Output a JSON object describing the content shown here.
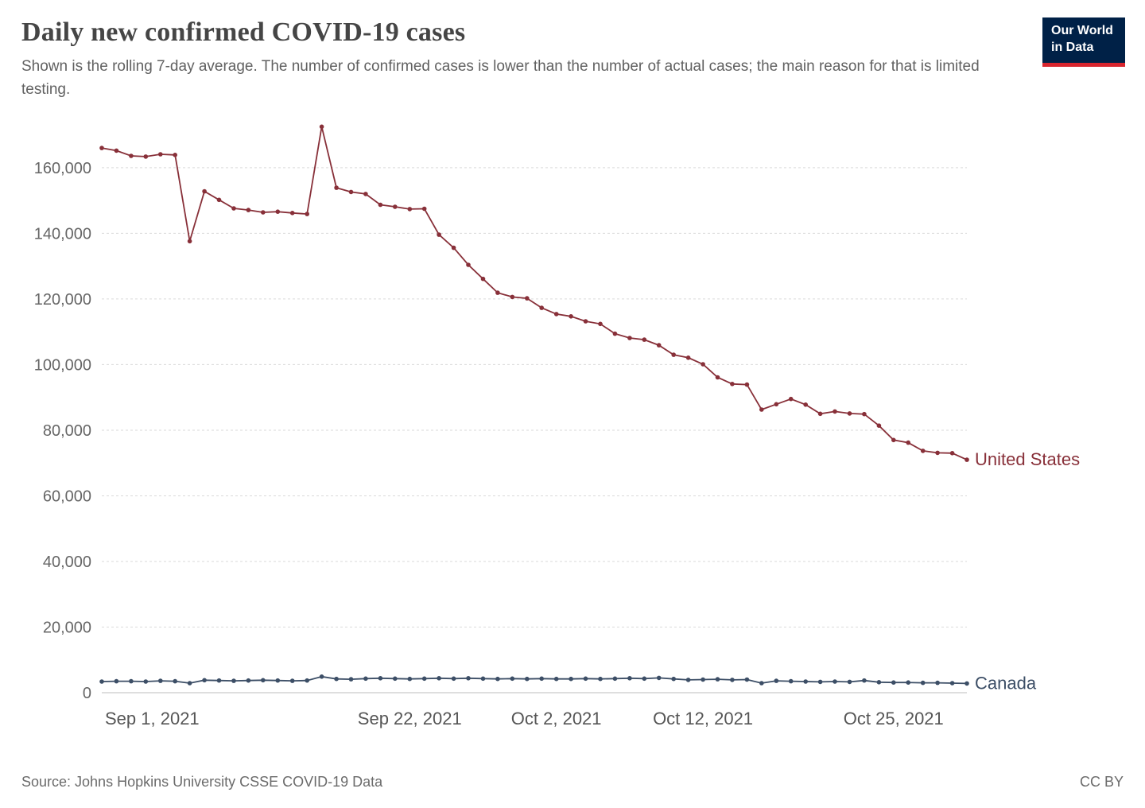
{
  "header": {
    "title": "Daily new confirmed COVID-19 cases",
    "subtitle": "Shown is the rolling 7-day average. The number of confirmed cases is lower than the number of actual cases; the main reason for that is limited testing.",
    "logo": {
      "line1": "Our World",
      "line2": "in Data",
      "bg": "#002147",
      "accent": "#d8252e"
    }
  },
  "footer": {
    "source": "Source: Johns Hopkins University CSSE COVID-19 Data",
    "license": "CC BY"
  },
  "chart_data": {
    "type": "line",
    "title": "Daily new confirmed COVID-19 cases",
    "ylabel": "",
    "xlabel": "",
    "ylim": [
      0,
      175000
    ],
    "yticks": [
      0,
      20000,
      40000,
      60000,
      80000,
      100000,
      120000,
      140000,
      160000
    ],
    "grid": "horizontal dashed",
    "legend_position": "end-of-line labels",
    "dates": [
      "Sep 1",
      "Sep 2",
      "Sep 3",
      "Sep 4",
      "Sep 5",
      "Sep 6",
      "Sep 7",
      "Sep 8",
      "Sep 9",
      "Sep 10",
      "Sep 11",
      "Sep 12",
      "Sep 13",
      "Sep 14",
      "Sep 15",
      "Sep 16",
      "Sep 17",
      "Sep 18",
      "Sep 19",
      "Sep 20",
      "Sep 21",
      "Sep 22",
      "Sep 23",
      "Sep 24",
      "Sep 25",
      "Sep 26",
      "Sep 27",
      "Sep 28",
      "Sep 29",
      "Sep 30",
      "Oct 1",
      "Oct 2",
      "Oct 3",
      "Oct 4",
      "Oct 5",
      "Oct 6",
      "Oct 7",
      "Oct 8",
      "Oct 9",
      "Oct 10",
      "Oct 11",
      "Oct 12",
      "Oct 13",
      "Oct 14",
      "Oct 15",
      "Oct 16",
      "Oct 17",
      "Oct 18",
      "Oct 19",
      "Oct 20",
      "Oct 21",
      "Oct 22",
      "Oct 23",
      "Oct 24",
      "Oct 25",
      "Oct 26",
      "Oct 27",
      "Oct 28",
      "Oct 29",
      "Oct 30"
    ],
    "xticks": [
      {
        "label": "Sep 1, 2021",
        "index": 0
      },
      {
        "label": "Sep 22, 2021",
        "index": 21
      },
      {
        "label": "Oct 2, 2021",
        "index": 31
      },
      {
        "label": "Oct 12, 2021",
        "index": 41
      },
      {
        "label": "Oct 25, 2021",
        "index": 54
      }
    ],
    "series": [
      {
        "name": "United States",
        "color": "#883039",
        "values": [
          166000,
          165200,
          163600,
          163400,
          164100,
          163900,
          137600,
          152800,
          150200,
          147600,
          147100,
          146400,
          146600,
          146200,
          145900,
          172500,
          153900,
          152600,
          152000,
          148700,
          148100,
          147400,
          147500,
          139600,
          135600,
          130400,
          126100,
          121900,
          120600,
          120200,
          117300,
          115400,
          114700,
          113200,
          112400,
          109400,
          108100,
          107600,
          105900,
          103000,
          102100,
          100100,
          96100,
          94100,
          93900,
          86300,
          87900,
          89500,
          87800,
          85000,
          85700,
          85100,
          84900,
          81400,
          77000,
          76200,
          73700,
          73100,
          73000,
          71000
        ]
      },
      {
        "name": "Canada",
        "color": "#3C4E66",
        "values": [
          3400,
          3500,
          3500,
          3400,
          3600,
          3500,
          2900,
          3800,
          3700,
          3600,
          3700,
          3800,
          3700,
          3600,
          3700,
          4900,
          4200,
          4100,
          4300,
          4400,
          4300,
          4200,
          4300,
          4400,
          4300,
          4400,
          4300,
          4200,
          4300,
          4200,
          4300,
          4200,
          4200,
          4300,
          4200,
          4300,
          4400,
          4300,
          4500,
          4200,
          3900,
          4000,
          4100,
          3900,
          4000,
          2900,
          3600,
          3500,
          3400,
          3300,
          3400,
          3300,
          3700,
          3200,
          3100,
          3100,
          3000,
          3000,
          2900,
          2800
        ]
      }
    ]
  }
}
